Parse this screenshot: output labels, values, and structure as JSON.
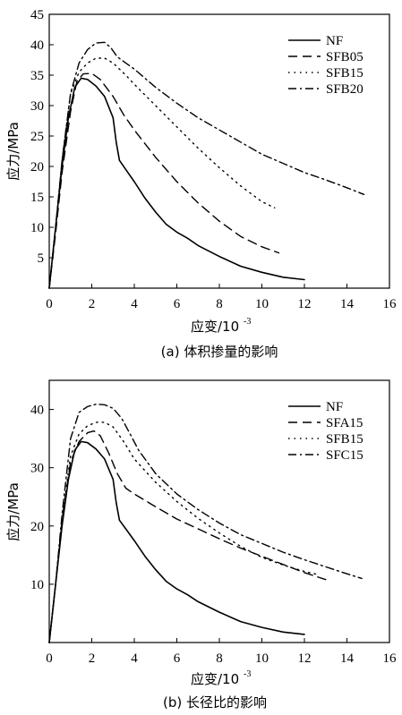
{
  "chart_data": [
    {
      "type": "line",
      "caption": "(a) 体积掺量的影响",
      "xlabel": "应变/10",
      "xlabel_exp": "-3",
      "ylabel": "应力/MPa",
      "xlim": [
        0,
        16
      ],
      "ylim": [
        0,
        45
      ],
      "xticks": [
        0,
        2,
        4,
        6,
        8,
        10,
        12,
        14,
        16
      ],
      "yticks": [
        5,
        10,
        15,
        20,
        25,
        30,
        35,
        40,
        45
      ],
      "legend_position": "top-right",
      "series": [
        {
          "name": "NF",
          "dash": "solid",
          "x": [
            0,
            0.3,
            0.6,
            0.9,
            1.2,
            1.5,
            1.8,
            2.2,
            2.6,
            3.0,
            3.15,
            3.3,
            3.6,
            4.0,
            4.5,
            5.0,
            5.5,
            6.0,
            6.5,
            7.0,
            8.0,
            9.0,
            10.0,
            11.0,
            12.0
          ],
          "y": [
            0,
            10,
            20,
            28,
            33,
            34.5,
            34.3,
            33.2,
            31.5,
            28,
            24,
            21,
            19.5,
            17.5,
            14.8,
            12.5,
            10.5,
            9.2,
            8.2,
            7.0,
            5.2,
            3.6,
            2.6,
            1.8,
            1.4
          ]
        },
        {
          "name": "SFB05",
          "dash": "dash",
          "x": [
            0,
            0.3,
            0.6,
            1.0,
            1.3,
            1.6,
            2.0,
            2.4,
            3.0,
            3.5,
            4.0,
            5.0,
            6.0,
            7.0,
            8.0,
            9.0,
            10.0,
            10.8
          ],
          "y": [
            0,
            9,
            19,
            29,
            34,
            35.2,
            35.3,
            34.3,
            31.5,
            28.5,
            26,
            21.5,
            17.5,
            14,
            11,
            8.5,
            6.8,
            5.8
          ]
        },
        {
          "name": "SFB15",
          "dash": "dot",
          "x": [
            0,
            0.3,
            0.6,
            1.0,
            1.4,
            1.8,
            2.2,
            2.6,
            3.0,
            3.6,
            4.0,
            5.0,
            6.0,
            7.0,
            8.0,
            9.0,
            10.0,
            10.6
          ],
          "y": [
            0,
            10,
            21,
            32,
            35.5,
            37,
            37.8,
            37.8,
            37,
            35,
            33.5,
            30,
            26.5,
            23,
            19.8,
            16.8,
            14.2,
            13.2
          ]
        },
        {
          "name": "SFB20",
          "dash": "dashdot",
          "x": [
            0,
            0.3,
            0.6,
            1.0,
            1.4,
            1.8,
            2.2,
            2.6,
            2.9,
            3.2,
            3.6,
            4.0,
            5.0,
            6.0,
            7.0,
            8.0,
            9.0,
            10.0,
            11.0,
            12.0,
            13.0,
            14.0,
            14.8
          ],
          "y": [
            0,
            10,
            21,
            32,
            37,
            39.2,
            40.3,
            40.4,
            39.5,
            38,
            37,
            36,
            33,
            30.4,
            28,
            26,
            24,
            22,
            20.5,
            19,
            17.8,
            16.5,
            15.4
          ]
        }
      ]
    },
    {
      "type": "line",
      "caption": "(b) 长径比的影响",
      "xlabel": "应变/10",
      "xlabel_exp": "-3",
      "ylabel": "应力/MPa",
      "xlim": [
        0,
        16
      ],
      "ylim": [
        0,
        45
      ],
      "xticks": [
        0,
        2,
        4,
        6,
        8,
        10,
        12,
        14,
        16
      ],
      "yticks": [
        10,
        20,
        30,
        40
      ],
      "legend_position": "top-right",
      "series": [
        {
          "name": "NF",
          "dash": "solid",
          "x": [
            0,
            0.3,
            0.6,
            0.9,
            1.2,
            1.5,
            1.8,
            2.2,
            2.6,
            3.0,
            3.15,
            3.3,
            3.6,
            4.0,
            4.5,
            5.0,
            5.5,
            6.0,
            6.5,
            7.0,
            8.0,
            9.0,
            10.0,
            11.0,
            12.0
          ],
          "y": [
            0,
            10,
            20,
            28,
            33,
            34.5,
            34.3,
            33.2,
            31.5,
            28,
            24,
            21,
            19.5,
            17.5,
            14.8,
            12.5,
            10.5,
            9.2,
            8.2,
            7.0,
            5.2,
            3.6,
            2.6,
            1.8,
            1.4
          ]
        },
        {
          "name": "SFA15",
          "dash": "dash",
          "x": [
            0,
            0.3,
            0.6,
            1.0,
            1.4,
            1.8,
            2.1,
            2.4,
            2.8,
            3.2,
            3.6,
            4.0,
            5.0,
            6.0,
            7.0,
            8.0,
            9.0,
            10.0,
            11.0,
            12.0,
            13.0
          ],
          "y": [
            0,
            10,
            21,
            31,
            34.5,
            36,
            36.3,
            35.5,
            32.5,
            29,
            26.5,
            25.5,
            23.3,
            21.2,
            19.5,
            17.8,
            16.2,
            14.8,
            13.4,
            12,
            10.8
          ]
        },
        {
          "name": "SFB15",
          "dash": "dot",
          "x": [
            0,
            0.3,
            0.6,
            1.0,
            1.4,
            1.8,
            2.2,
            2.6,
            3.0,
            3.5,
            4.0,
            5.0,
            6.0,
            7.0,
            8.0,
            9.0,
            10.0,
            11.0,
            12.0,
            12.6
          ],
          "y": [
            0,
            10,
            21,
            32,
            35.8,
            37.2,
            37.8,
            37.8,
            37,
            34.5,
            31.5,
            27.5,
            24.2,
            21.3,
            18.8,
            16.5,
            14.6,
            13.3,
            12.2,
            11.7
          ]
        },
        {
          "name": "SFC15",
          "dash": "dashdot",
          "x": [
            0,
            0.3,
            0.6,
            1.0,
            1.4,
            1.8,
            2.2,
            2.6,
            3.0,
            3.4,
            3.8,
            4.2,
            5.0,
            6.0,
            7.0,
            8.0,
            9.0,
            10.0,
            11.0,
            12.0,
            13.0,
            14.0,
            14.7
          ],
          "y": [
            0,
            10,
            22,
            35,
            39.5,
            40.5,
            40.9,
            40.8,
            40.2,
            38.5,
            35.8,
            33,
            29,
            25.5,
            22.8,
            20.5,
            18.5,
            17,
            15.5,
            14.2,
            13,
            11.8,
            11
          ]
        }
      ]
    }
  ]
}
